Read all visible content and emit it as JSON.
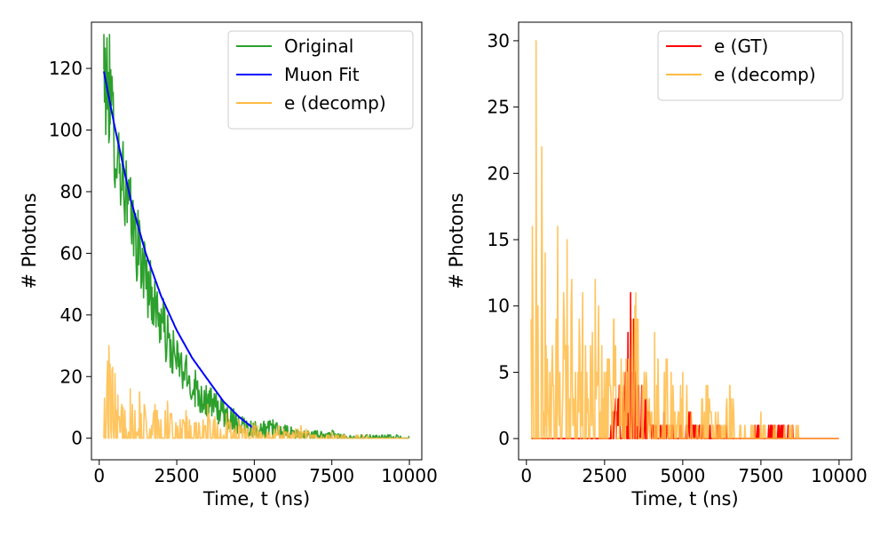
{
  "chart_data": [
    {
      "type": "line",
      "xlabel": "Time, t (ns)",
      "ylabel": "# Photons",
      "xlim": [
        -250,
        10400
      ],
      "ylim": [
        -7,
        135
      ],
      "xticks": [
        0,
        2500,
        5000,
        7500,
        10000
      ],
      "xtick_labels": [
        "0",
        "2500",
        "5000",
        "7500",
        "10000"
      ],
      "yticks": [
        0,
        20,
        40,
        60,
        80,
        100,
        120
      ],
      "ytick_labels": [
        "0",
        "20",
        "40",
        "60",
        "80",
        "100",
        "120"
      ],
      "legend_position": "upper right",
      "series": [
        {
          "name": "Original",
          "color": "#2ca02c",
          "style": "noisy",
          "x": [
            150,
            300,
            500,
            750,
            1000,
            1250,
            1500,
            1750,
            2000,
            2250,
            2500,
            2750,
            3000,
            3250,
            3500,
            3750,
            4000,
            4500,
            5000,
            5500,
            6000,
            6500,
            7000,
            7500,
            8000,
            8500,
            9000,
            9500,
            10000
          ],
          "y": [
            115,
            112,
            97,
            86,
            72,
            62,
            53,
            44,
            38,
            30,
            25,
            21,
            17,
            14,
            12,
            10,
            8,
            5,
            3,
            3,
            2,
            1,
            1,
            1,
            0,
            0,
            0,
            0,
            0
          ],
          "peaks": [
            [
              150,
              131
            ],
            [
              330,
              131
            ],
            [
              400,
              108
            ],
            [
              650,
              86
            ],
            [
              900,
              70
            ],
            [
              1700,
              49
            ],
            [
              2000,
              42
            ],
            [
              2500,
              27
            ],
            [
              3100,
              22
            ],
            [
              5600,
              6
            ]
          ]
        },
        {
          "name": "Muon Fit",
          "color": "#0000ff",
          "style": "smooth",
          "x": [
            150,
            500,
            1000,
            1500,
            2000,
            2500,
            3000,
            3500,
            4000,
            4500,
            5000
          ],
          "y": [
            119,
            101,
            78,
            60,
            46,
            35,
            26,
            19,
            12,
            7,
            3
          ]
        },
        {
          "name": "e (decomp)",
          "color": "#ffbb44",
          "style": "spiky",
          "x": [
            150,
            2000,
            4000,
            6000,
            8000,
            10000
          ],
          "y": [
            0,
            0,
            0,
            0,
            0,
            0
          ],
          "peaks": [
            [
              310,
              30
            ],
            [
              300,
              10
            ],
            [
              600,
              14
            ],
            [
              1000,
              16
            ],
            [
              1300,
              15
            ],
            [
              1800,
              11
            ],
            [
              2200,
              12
            ],
            [
              2800,
              9
            ],
            [
              3500,
              11
            ],
            [
              4100,
              8
            ],
            [
              4500,
              6
            ],
            [
              5000,
              5
            ],
            [
              5800,
              4
            ],
            [
              6500,
              4
            ],
            [
              7500,
              2
            ],
            [
              8500,
              1
            ]
          ]
        }
      ]
    },
    {
      "type": "line",
      "xlabel": "Time, t (ns)",
      "ylabel": "# Photons",
      "xlim": [
        -250,
        10400
      ],
      "ylim": [
        -1.6,
        31.4
      ],
      "xticks": [
        0,
        2500,
        5000,
        7500,
        10000
      ],
      "xtick_labels": [
        "0",
        "2500",
        "5000",
        "7500",
        "10000"
      ],
      "yticks": [
        0,
        5,
        10,
        15,
        20,
        25,
        30
      ],
      "ytick_labels": [
        "0",
        "5",
        "10",
        "15",
        "20",
        "25",
        "30"
      ],
      "legend_position": "upper right",
      "series": [
        {
          "name": "e (GT)",
          "color": "#ff0000",
          "style": "spiky",
          "x": [
            150,
            2000,
            3300,
            5000,
            7500,
            10000
          ],
          "y": [
            0,
            0,
            0,
            0,
            0,
            0
          ],
          "peaks": [
            [
              3330,
              11
            ],
            [
              3560,
              4
            ],
            [
              3800,
              3
            ],
            [
              4400,
              2
            ],
            [
              5200,
              2
            ],
            [
              6100,
              1
            ],
            [
              7300,
              1
            ],
            [
              7900,
              1
            ],
            [
              8200,
              1
            ]
          ]
        },
        {
          "name": "e (decomp)",
          "color": "#ffbb44",
          "style": "spiky",
          "x": [
            150,
            2000,
            4000,
            6000,
            8000,
            10000
          ],
          "y": [
            0,
            0,
            0,
            0,
            0,
            0
          ],
          "peaks": [
            [
              310,
              30
            ],
            [
              300,
              10
            ],
            [
              600,
              14
            ],
            [
              1000,
              16
            ],
            [
              1300,
              15
            ],
            [
              1800,
              11
            ],
            [
              2200,
              12
            ],
            [
              2800,
              9
            ],
            [
              3500,
              11
            ],
            [
              4100,
              8
            ],
            [
              4500,
              6
            ],
            [
              5000,
              5
            ],
            [
              5800,
              4
            ],
            [
              6500,
              4
            ],
            [
              7500,
              2
            ],
            [
              8500,
              1
            ]
          ]
        }
      ]
    }
  ]
}
